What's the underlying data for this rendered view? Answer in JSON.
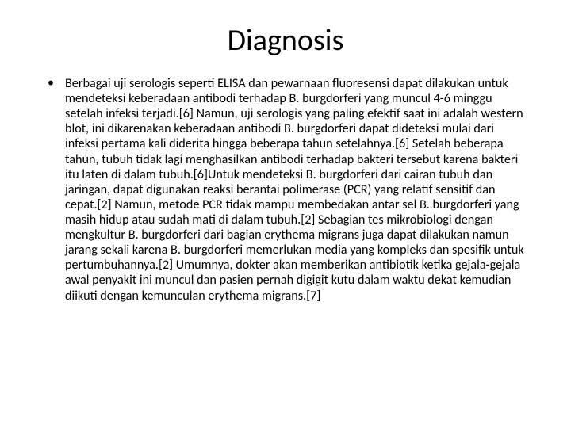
{
  "slide": {
    "background_color": "#ffffff",
    "text_color": "#000000",
    "title": {
      "text": "Diagnosis",
      "font_size_pt": 38,
      "font_weight": "regular",
      "align": "center"
    },
    "body": {
      "font_size_pt": 16,
      "line_height": 1.18,
      "bullets": [
        "Berbagai uji serologis seperti ELISA dan pewarnaan fluoresensi dapat dilakukan untuk mendeteksi keberadaan antibodi terhadap B. burgdorferi yang muncul 4-6 minggu setelah infeksi terjadi.[6] Namun, uji serologis yang paling efektif saat ini adalah western blot, ini dikarenakan keberadaan antibodi B. burgdorferi dapat dideteksi mulai dari infeksi pertama kali diderita hingga beberapa tahun setelahnya.[6] Setelah beberapa tahun, tubuh tidak lagi menghasilkan antibodi terhadap bakteri tersebut karena bakteri itu laten di dalam tubuh.[6]Untuk mendeteksi B. burgdorferi dari cairan tubuh dan jaringan, dapat digunakan reaksi berantai polimerase (PCR) yang relatif sensitif dan cepat.[2] Namun, metode PCR tidak mampu membedakan antar sel B. burgdorferi yang masih hidup atau sudah mati di dalam tubuh.[2] Sebagian tes mikrobiologi dengan mengkultur B. burgdorferi dari bagian erythema migrans juga dapat dilakukan namun jarang sekali karena B. burgdorferi memerlukan media yang kompleks dan spesifik untuk pertumbuhannya.[2] Umumnya, dokter akan memberikan antibiotik ketika gejala-gejala awal penyakit ini muncul dan pasien pernah digigit kutu dalam waktu dekat kemudian diikuti dengan kemunculan erythema migrans.[7]"
      ]
    }
  }
}
